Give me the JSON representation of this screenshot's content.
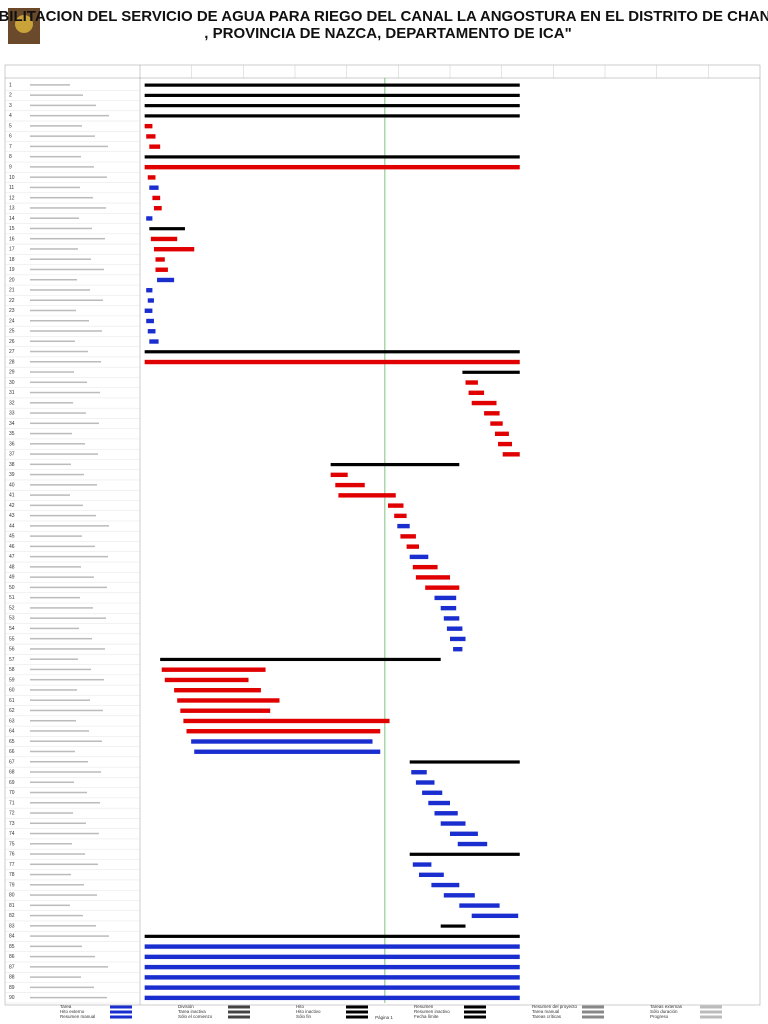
{
  "title_lines": [
    "\"REHABILITACION DEL SERVICIO DE AGUA PARA RIEGO DEL CANAL LA ANGOSTURA EN EL DISTRITO DE CHANGUILLO",
    ", PROVINCIA DE NAZCA, DEPARTAMENTO DE ICA\""
  ],
  "chart_data": {
    "type": "gantt",
    "xlim": [
      0,
      400
    ],
    "today": 158,
    "colors": {
      "k": "#000000",
      "r": "#e00000",
      "b": "#1a2ed0"
    },
    "rows": [
      [
        1,
        3,
        245,
        "k"
      ],
      [
        2,
        3,
        245,
        "k"
      ],
      [
        3,
        3,
        245,
        "k"
      ],
      [
        4,
        3,
        245,
        "k"
      ],
      [
        5,
        3,
        8,
        "r"
      ],
      [
        6,
        4,
        10,
        "r"
      ],
      [
        7,
        6,
        13,
        "r"
      ],
      [
        8,
        3,
        245,
        "k"
      ],
      [
        9,
        3,
        245,
        "r"
      ],
      [
        10,
        5,
        10,
        "r"
      ],
      [
        11,
        6,
        12,
        "b"
      ],
      [
        12,
        8,
        13,
        "r"
      ],
      [
        13,
        9,
        14,
        "r"
      ],
      [
        14,
        4,
        8,
        "b"
      ],
      [
        15,
        6,
        29,
        "k"
      ],
      [
        16,
        7,
        24,
        "r"
      ],
      [
        17,
        9,
        35,
        "r"
      ],
      [
        18,
        10,
        16,
        "r"
      ],
      [
        19,
        10,
        18,
        "r"
      ],
      [
        20,
        11,
        22,
        "b"
      ],
      [
        21,
        4,
        8,
        "b"
      ],
      [
        22,
        5,
        9,
        "b"
      ],
      [
        23,
        3,
        8,
        "b"
      ],
      [
        24,
        4,
        9,
        "b"
      ],
      [
        25,
        5,
        10,
        "b"
      ],
      [
        26,
        6,
        12,
        "b"
      ],
      [
        27,
        3,
        245,
        "k"
      ],
      [
        28,
        3,
        245,
        "r"
      ],
      [
        29,
        208,
        245,
        "k"
      ],
      [
        30,
        210,
        218,
        "r"
      ],
      [
        31,
        212,
        222,
        "r"
      ],
      [
        32,
        214,
        230,
        "r"
      ],
      [
        33,
        222,
        232,
        "r"
      ],
      [
        34,
        226,
        234,
        "r"
      ],
      [
        35,
        229,
        238,
        "r"
      ],
      [
        36,
        231,
        240,
        "r"
      ],
      [
        37,
        234,
        245,
        "r"
      ],
      [
        38,
        123,
        206,
        "k"
      ],
      [
        39,
        123,
        134,
        "r"
      ],
      [
        40,
        126,
        145,
        "r"
      ],
      [
        41,
        128,
        165,
        "r"
      ],
      [
        42,
        160,
        170,
        "r"
      ],
      [
        43,
        164,
        172,
        "r"
      ],
      [
        44,
        166,
        174,
        "b"
      ],
      [
        45,
        168,
        178,
        "r"
      ],
      [
        46,
        172,
        180,
        "r"
      ],
      [
        47,
        174,
        186,
        "b"
      ],
      [
        48,
        176,
        192,
        "r"
      ],
      [
        49,
        178,
        200,
        "r"
      ],
      [
        50,
        184,
        206,
        "r"
      ],
      [
        51,
        190,
        204,
        "b"
      ],
      [
        52,
        194,
        204,
        "b"
      ],
      [
        53,
        196,
        206,
        "b"
      ],
      [
        54,
        198,
        208,
        "b"
      ],
      [
        55,
        200,
        210,
        "b"
      ],
      [
        56,
        202,
        208,
        "b"
      ],
      [
        57,
        13,
        194,
        "k"
      ],
      [
        58,
        14,
        81,
        "r"
      ],
      [
        59,
        16,
        70,
        "r"
      ],
      [
        60,
        22,
        78,
        "r"
      ],
      [
        61,
        24,
        90,
        "r"
      ],
      [
        62,
        26,
        84,
        "r"
      ],
      [
        63,
        28,
        161,
        "r"
      ],
      [
        64,
        30,
        155,
        "r"
      ],
      [
        65,
        33,
        150,
        "b"
      ],
      [
        66,
        35,
        155,
        "b"
      ],
      [
        67,
        174,
        245,
        "k"
      ],
      [
        68,
        175,
        185,
        "b"
      ],
      [
        69,
        178,
        190,
        "b"
      ],
      [
        70,
        182,
        195,
        "b"
      ],
      [
        71,
        186,
        200,
        "b"
      ],
      [
        72,
        190,
        205,
        "b"
      ],
      [
        73,
        194,
        210,
        "b"
      ],
      [
        74,
        200,
        218,
        "b"
      ],
      [
        75,
        205,
        224,
        "b"
      ],
      [
        76,
        174,
        245,
        "k"
      ],
      [
        77,
        176,
        188,
        "b"
      ],
      [
        78,
        180,
        196,
        "b"
      ],
      [
        79,
        188,
        206,
        "b"
      ],
      [
        80,
        196,
        216,
        "b"
      ],
      [
        81,
        206,
        232,
        "b"
      ],
      [
        82,
        214,
        244,
        "b"
      ],
      [
        83,
        194,
        210,
        "k"
      ],
      [
        84,
        3,
        245,
        "k"
      ],
      [
        85,
        3,
        245,
        "b"
      ],
      [
        86,
        3,
        245,
        "b"
      ],
      [
        87,
        3,
        245,
        "b"
      ],
      [
        88,
        3,
        245,
        "b"
      ],
      [
        89,
        3,
        245,
        "b"
      ],
      [
        90,
        3,
        245,
        "b"
      ]
    ],
    "legend": [
      "Tarea",
      "División",
      "Hito",
      "Resumen",
      "Resumen del proyecto",
      "Tareas externas",
      "Hito externo",
      "Tarea inactiva",
      "Hito inactivo",
      "Resumen inactivo",
      "Tarea manual",
      "Sólo duración",
      "Resumen manual",
      "Sólo el comienzo",
      "Sólo fin",
      "Fecha límite",
      "Tareas críticas",
      "Progreso"
    ]
  },
  "footer": {
    "page": "Página 1"
  }
}
